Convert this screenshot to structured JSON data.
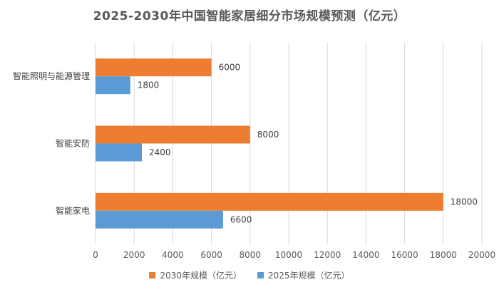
{
  "chart_data": {
    "type": "bar",
    "orientation": "horizontal",
    "title": "2025-2030年中国智能家居细分市场规模预测（亿元）",
    "categories": [
      "智能照明与能源管理",
      "智能安防",
      "智能家电"
    ],
    "series": [
      {
        "name": "2030年规模（亿元）",
        "values": [
          6000,
          8000,
          18000
        ],
        "color": "#ED7D31"
      },
      {
        "name": "2025年规模（亿元）",
        "values": [
          1800,
          2400,
          6600
        ],
        "color": "#5B9BD5"
      }
    ],
    "xlim": [
      0,
      20000
    ],
    "xticks": [
      "0",
      "2000",
      "4000",
      "6000",
      "8000",
      "10000",
      "12000",
      "14000",
      "16000",
      "18000",
      "20000"
    ],
    "grid": true,
    "legend": "bottom"
  }
}
